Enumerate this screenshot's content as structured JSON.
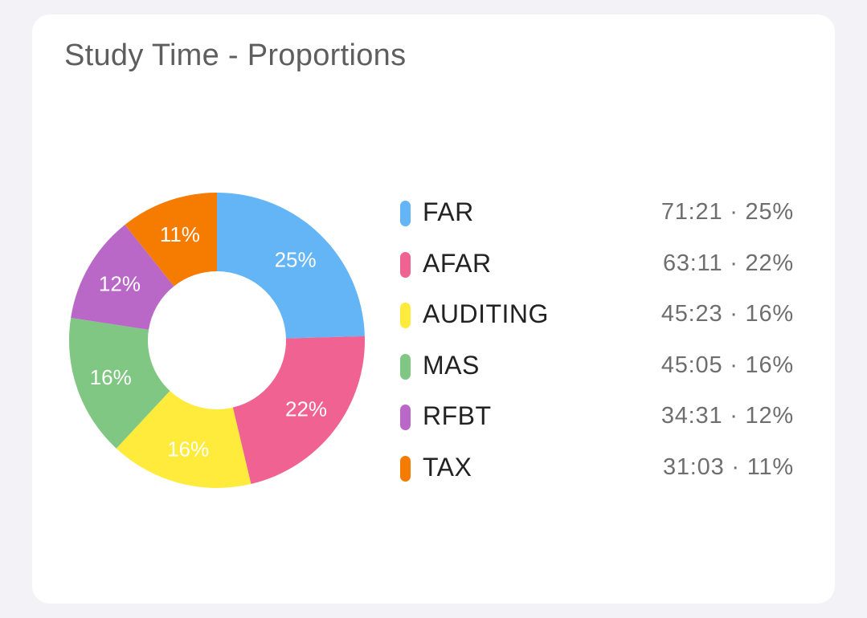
{
  "card": {
    "title": "Study Time - Proportions"
  },
  "chart_data": {
    "type": "pie",
    "title": "Study Time - Proportions",
    "categories": [
      "FAR",
      "AFAR",
      "AUDITING",
      "MAS",
      "RFBT",
      "TAX"
    ],
    "values": [
      71.35,
      63.1833,
      45.3833,
      45.0833,
      34.5167,
      31.05
    ],
    "durations": [
      "71:21",
      "63:11",
      "45:23",
      "45:05",
      "34:31",
      "31:03"
    ],
    "percent_labels": [
      "25%",
      "22%",
      "16%",
      "16%",
      "12%",
      "11%"
    ],
    "colors": [
      "#64b5f6",
      "#f06292",
      "#ffeb3b",
      "#81c784",
      "#ba68c8",
      "#f57c00"
    ],
    "donut": true,
    "legend_position": "right"
  },
  "legend": {
    "separator": " · ",
    "items": [
      {
        "name": "FAR",
        "value": "71:21 · 25%",
        "color": "#64b5f6"
      },
      {
        "name": "AFAR",
        "value": "63:11 · 22%",
        "color": "#f06292"
      },
      {
        "name": "AUDITING",
        "value": "45:23 · 16%",
        "color": "#ffeb3b"
      },
      {
        "name": "MAS",
        "value": "45:05 · 16%",
        "color": "#81c784"
      },
      {
        "name": "RFBT",
        "value": "34:31 · 12%",
        "color": "#ba68c8"
      },
      {
        "name": "TAX",
        "value": "31:03 · 11%",
        "color": "#f57c00"
      }
    ]
  }
}
